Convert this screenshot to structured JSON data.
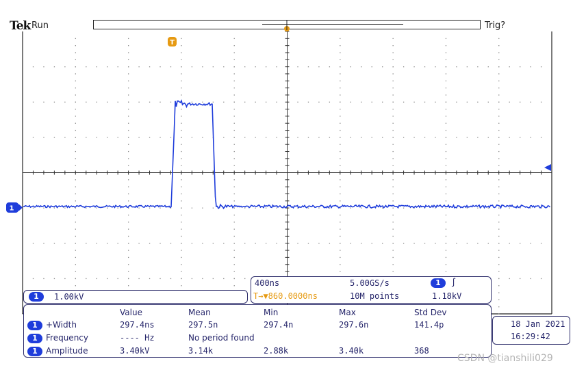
{
  "header": {
    "brand": "Tek",
    "status": "Run",
    "trigger_state": "Trig?"
  },
  "markers": {
    "trigger_marker": "T",
    "channel_marker": "1"
  },
  "channel_readout": {
    "channel": "1",
    "scale": "1.00kV"
  },
  "timebase": {
    "time_per_div": "400ns",
    "sample_rate": "5.00GS/s",
    "trigger_channel": "1",
    "trigger_slope_glyph": "∫",
    "trigger_position": "T→▼860.0000ns",
    "record_length": "10M points",
    "trigger_level": "1.18kV"
  },
  "measurements": {
    "headers": [
      "Value",
      "Mean",
      "Min",
      "Max",
      "Std Dev"
    ],
    "rows": [
      {
        "channel": "1",
        "name": "+Width",
        "value": "297.4ns",
        "mean": "297.5n",
        "min": "297.4n",
        "max": "297.6n",
        "stddev": "141.4p"
      },
      {
        "channel": "1",
        "name": "Frequency",
        "value": "---- Hz",
        "note": "No period found"
      },
      {
        "channel": "1",
        "name": "Amplitude",
        "value": "3.40kV",
        "mean": "3.14k",
        "min": "2.88k",
        "max": "3.40k",
        "stddev": "368"
      }
    ]
  },
  "datetime": {
    "date": "18 Jan  2021",
    "time": "16:29:42"
  },
  "watermark": "CSDN @tianshili029",
  "colors": {
    "trace": "#1f3ddb",
    "trigger": "#e69a12",
    "text": "#25256a"
  }
}
